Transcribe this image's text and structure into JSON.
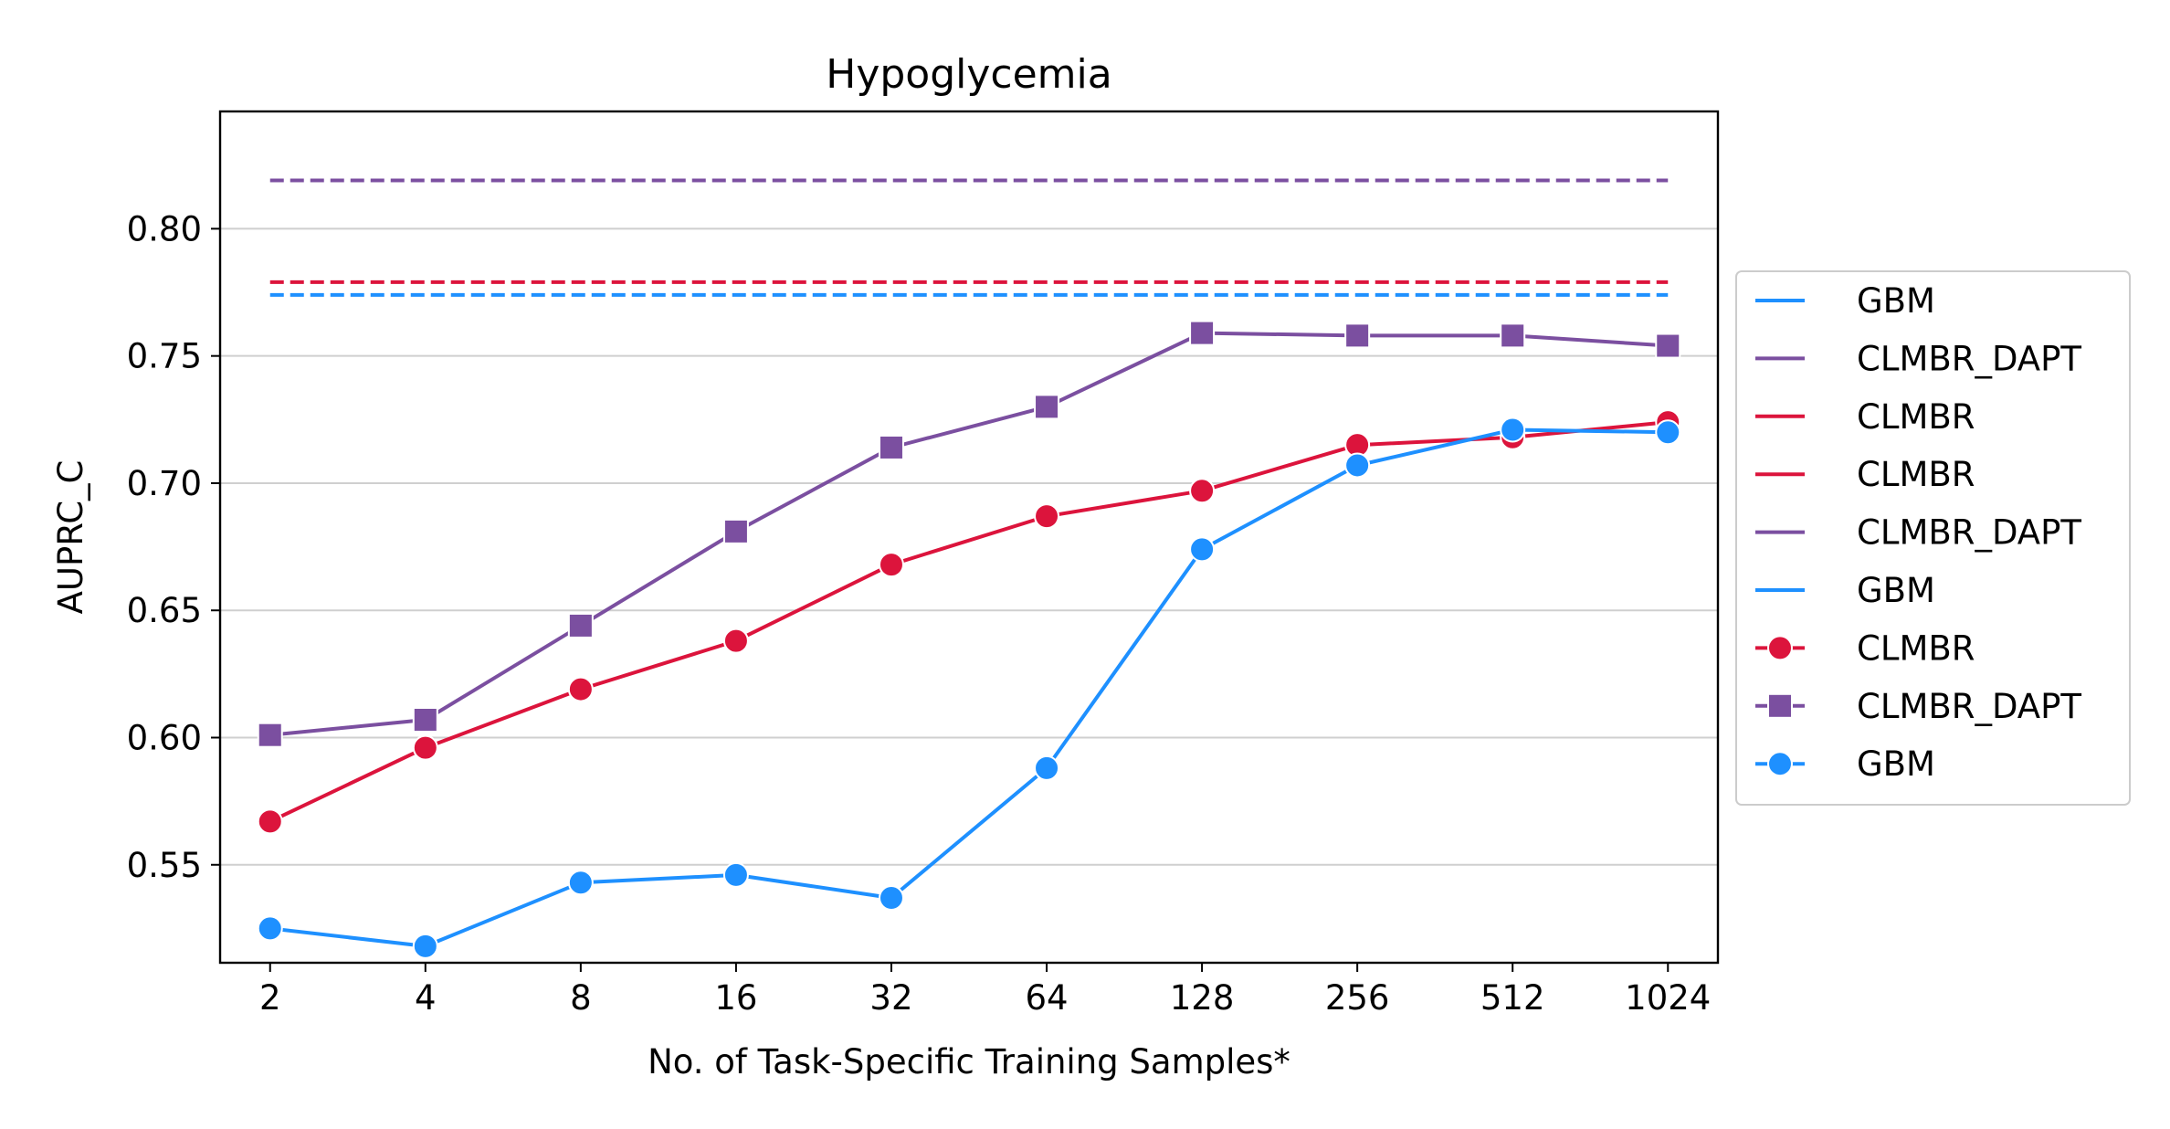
{
  "chart_data": {
    "type": "line",
    "title": "Hypoglycemia",
    "xlabel": "No. of Task-Specific Training Samples*",
    "ylabel": "AUPRC_C",
    "x_scale": "log2",
    "categories": [
      "2",
      "4",
      "8",
      "16",
      "32",
      "64",
      "128",
      "256",
      "512",
      "1024"
    ],
    "x": [
      2,
      4,
      8,
      16,
      32,
      64,
      128,
      256,
      512,
      1024
    ],
    "xlim": [
      1.6,
      1280
    ],
    "ylim": [
      0.5115,
      0.8461
    ],
    "yticks": [
      "0.55",
      "0.60",
      "0.65",
      "0.70",
      "0.75",
      "0.80"
    ],
    "grid": "horizontal",
    "legend_position": "right, outside",
    "series": [
      {
        "name": "CLMBR",
        "color": "#DC143C",
        "marker": "circle",
        "style": "solid",
        "values": [
          0.567,
          0.596,
          0.619,
          0.638,
          0.668,
          0.687,
          0.697,
          0.715,
          0.718,
          0.724
        ]
      },
      {
        "name": "CLMBR_DAPT",
        "color": "#7B4FA0",
        "marker": "square",
        "style": "solid",
        "values": [
          0.601,
          0.607,
          0.644,
          0.681,
          0.714,
          0.73,
          0.759,
          0.758,
          0.758,
          0.754
        ]
      },
      {
        "name": "GBM",
        "color": "#1E90FF",
        "marker": "circle",
        "style": "solid",
        "values": [
          0.525,
          0.518,
          0.543,
          0.546,
          0.537,
          0.588,
          0.674,
          0.707,
          0.721,
          0.72
        ]
      }
    ],
    "reference_lines": [
      {
        "name": "GBM",
        "color": "#1E90FF",
        "style": "dashed",
        "value": 0.774
      },
      {
        "name": "CLMBR",
        "color": "#DC143C",
        "style": "dashed",
        "value": 0.779
      },
      {
        "name": "CLMBR_DAPT",
        "color": "#7B4FA0",
        "style": "dashed",
        "value": 0.819
      }
    ],
    "legend": [
      {
        "label": "GBM",
        "color": "#1E90FF",
        "marker": "none"
      },
      {
        "label": "CLMBR_DAPT",
        "color": "#7B4FA0",
        "marker": "none"
      },
      {
        "label": "CLMBR",
        "color": "#DC143C",
        "marker": "none"
      },
      {
        "label": "CLMBR",
        "color": "#DC143C",
        "marker": "none"
      },
      {
        "label": "CLMBR_DAPT",
        "color": "#7B4FA0",
        "marker": "none"
      },
      {
        "label": "GBM",
        "color": "#1E90FF",
        "marker": "none"
      },
      {
        "label": "CLMBR",
        "color": "#DC143C",
        "marker": "circle"
      },
      {
        "label": "CLMBR_DAPT",
        "color": "#7B4FA0",
        "marker": "square"
      },
      {
        "label": "GBM",
        "color": "#1E90FF",
        "marker": "circle"
      }
    ]
  }
}
